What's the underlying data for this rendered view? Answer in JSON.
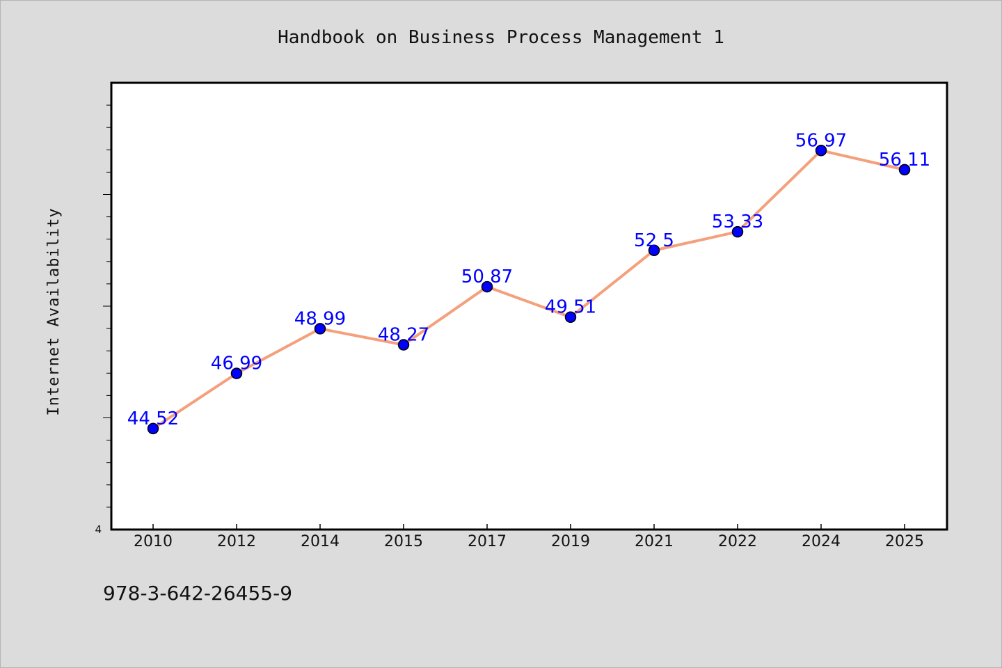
{
  "chart_data": {
    "type": "line",
    "title": "Handbook on Business Process Management 1",
    "xlabel": "",
    "ylabel": "Internet Availability",
    "categories": [
      "2010",
      "2012",
      "2014",
      "2015",
      "2017",
      "2019",
      "2021",
      "2022",
      "2024",
      "2025"
    ],
    "series": [
      {
        "values": [
          44.52,
          46.99,
          48.99,
          48.27,
          50.87,
          49.51,
          52.5,
          53.33,
          56.97,
          56.11
        ]
      }
    ],
    "ylim": [
      40,
      60
    ],
    "y_tick_labels_shown": [
      "4"
    ],
    "grid": false,
    "data_labels": true,
    "legend": "none",
    "colors": {
      "line": "#f4a07c",
      "marker": "#0000ff",
      "label": "#0000ff",
      "axes": "#000000"
    }
  },
  "footer": {
    "isbn": "978-3-642-26455-9"
  }
}
